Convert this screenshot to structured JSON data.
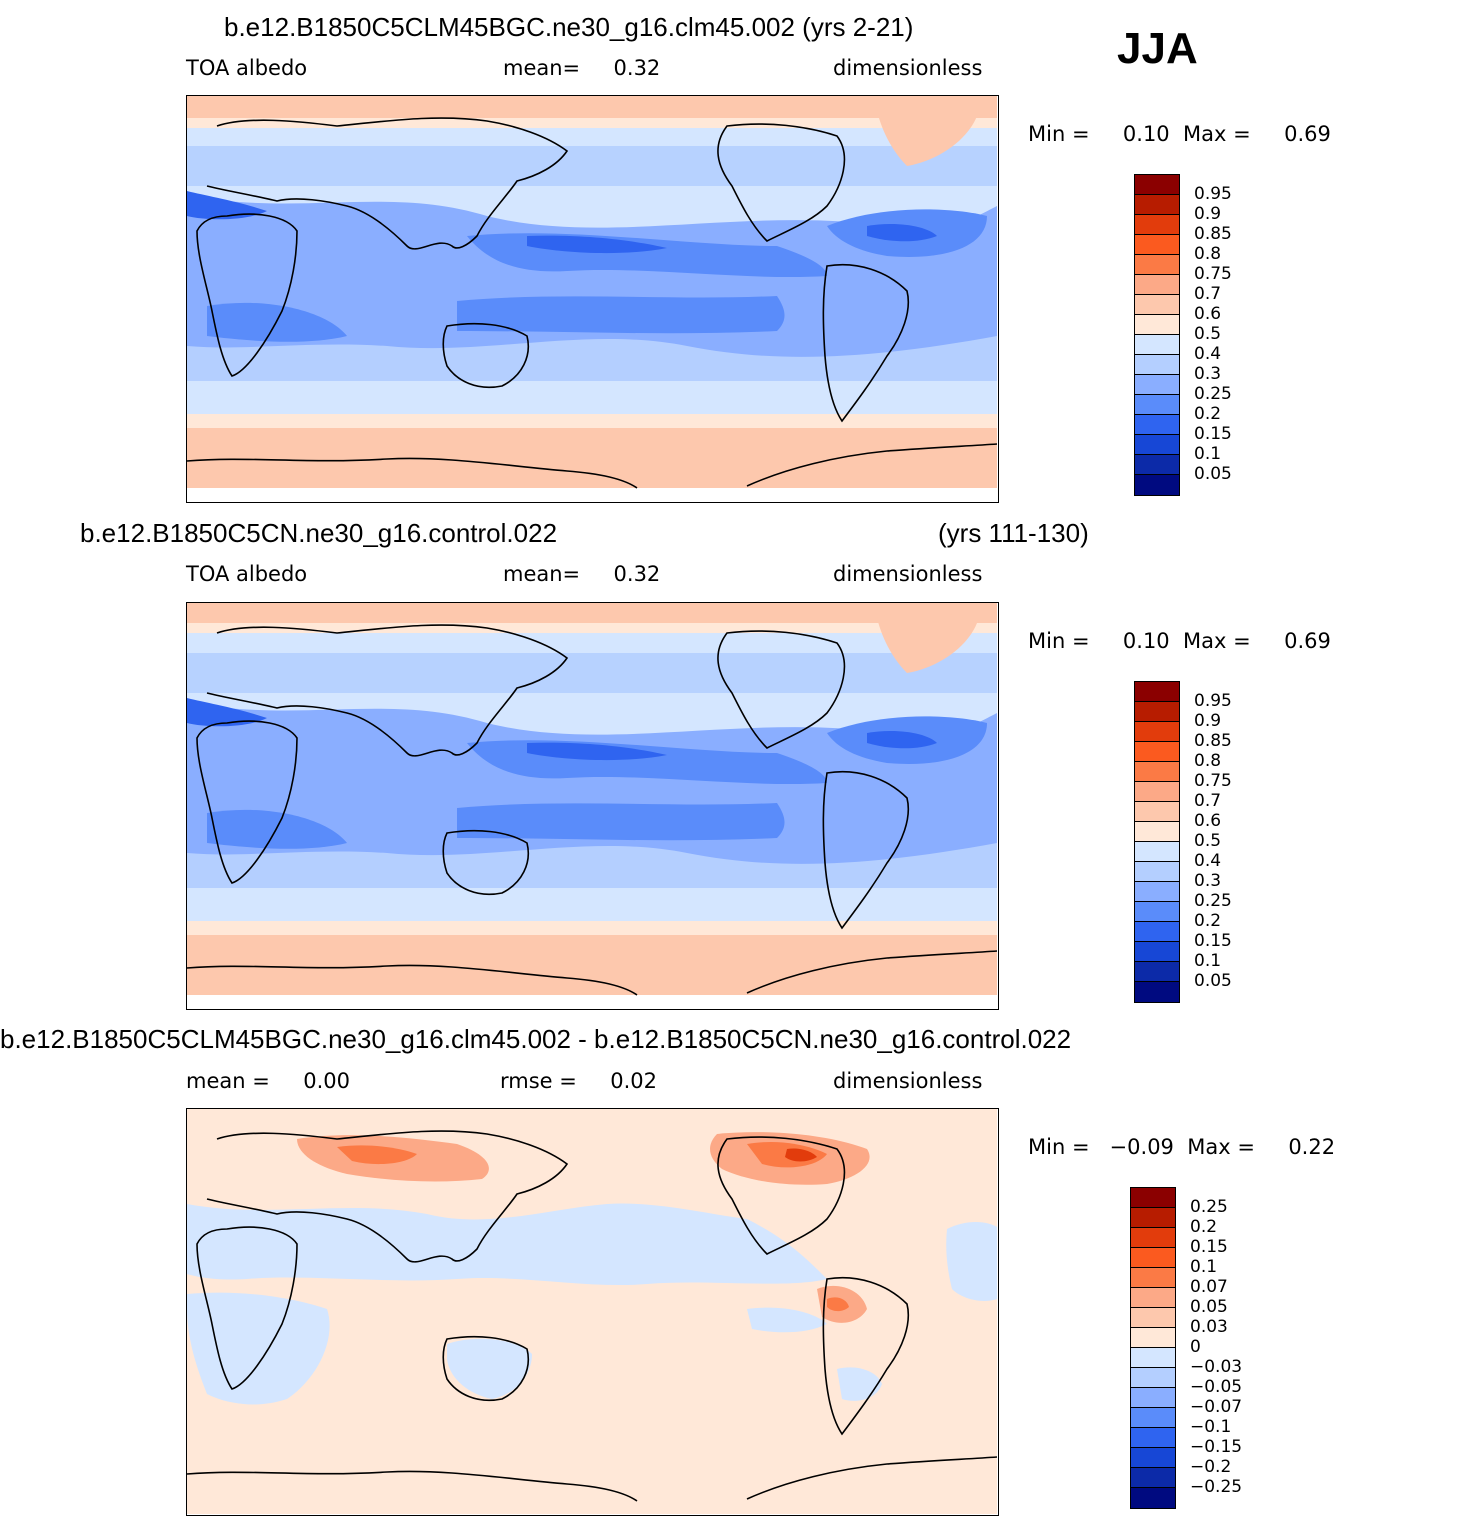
{
  "season": "JJA",
  "panels": [
    {
      "title": "b.e12.B1850C5CLM45BGC.ne30_g16.clm45.002 (yrs 2-21)",
      "subtitle_left": "TOA albedo",
      "subtitle_center": "mean=     0.32",
      "subtitle_right": "dimensionless",
      "minmax": "Min =     0.10  Max =     0.69",
      "colorbar_labels": [
        "0.95",
        "0.9",
        "0.85",
        "0.8",
        "0.75",
        "0.7",
        "0.6",
        "0.5",
        "0.4",
        "0.3",
        "0.25",
        "0.2",
        "0.15",
        "0.1",
        "0.05"
      ],
      "colorbar_colors": [
        "#8b0000",
        "#b71c00",
        "#e23c0c",
        "#fb5a1f",
        "#fb7a45",
        "#fca987",
        "#fdc8ad",
        "#ffe8d8",
        "#d4e6ff",
        "#b4cfff",
        "#8aaeff",
        "#5a8cfa",
        "#2f64f0",
        "#1747d6",
        "#0c2aa8",
        "#000a80"
      ]
    },
    {
      "title_left": "b.e12.B1850C5CN.ne30_g16.control.022",
      "title_right": "(yrs 111-130)",
      "subtitle_left": "TOA albedo",
      "subtitle_center": "mean=     0.32",
      "subtitle_right": "dimensionless",
      "minmax": "Min =     0.10  Max =     0.69",
      "colorbar_labels": [
        "0.95",
        "0.9",
        "0.85",
        "0.8",
        "0.75",
        "0.7",
        "0.6",
        "0.5",
        "0.4",
        "0.3",
        "0.25",
        "0.2",
        "0.15",
        "0.1",
        "0.05"
      ]
    },
    {
      "title": "b.e12.B1850C5CLM45BGC.ne30_g16.clm45.002 - b.e12.B1850C5CN.ne30_g16.control.022",
      "subtitle_left": "mean =     0.00",
      "subtitle_center": "rmse =     0.02",
      "subtitle_right": "dimensionless",
      "minmax": "Min =   −0.09  Max =     0.22",
      "colorbar_labels": [
        "0.25",
        "0.2",
        "0.15",
        "0.1",
        "0.07",
        "0.05",
        "0.03",
        "0",
        "−0.03",
        "−0.05",
        "−0.07",
        "−0.1",
        "−0.15",
        "−0.2",
        "−0.25"
      ]
    }
  ]
}
